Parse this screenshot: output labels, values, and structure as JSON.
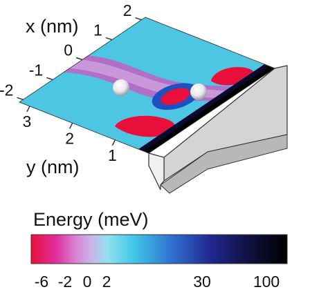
{
  "chart_data": {
    "type": "surface",
    "x_label": "x (nm)",
    "xticks": [
      2,
      1,
      0,
      -1,
      -2
    ],
    "y_label": "y (nm)",
    "yticks": [
      3,
      2,
      1
    ],
    "colorbar": {
      "title": "Energy (meV)",
      "ticks": [
        -6,
        -2,
        0,
        2,
        30,
        100
      ]
    }
  }
}
